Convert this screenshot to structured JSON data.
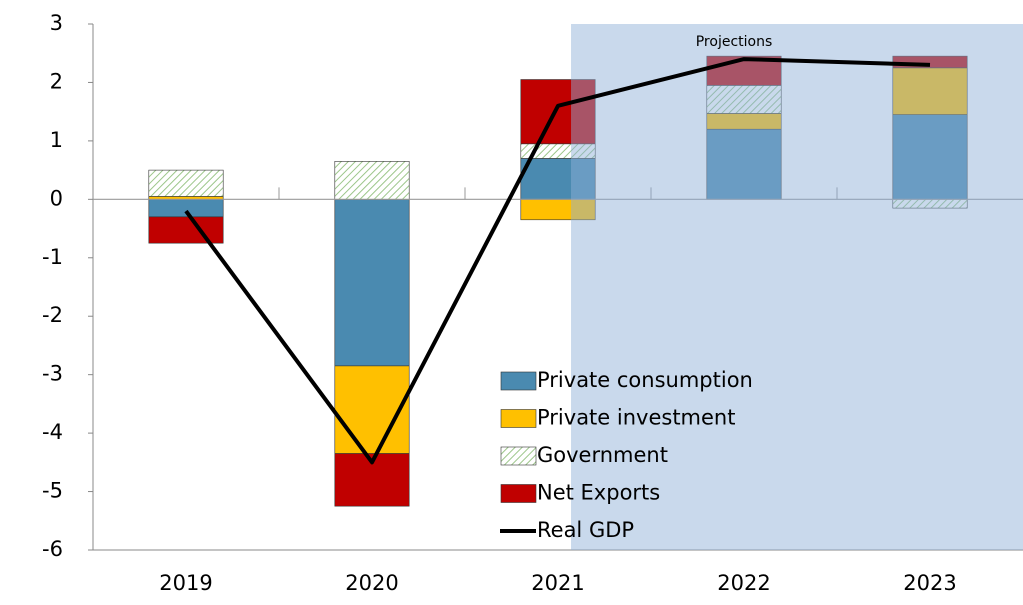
{
  "chart_data": {
    "type": "stacked_bar_line",
    "annotation": "Projections",
    "categories": [
      "2019",
      "2020",
      "2021",
      "2022",
      "2023"
    ],
    "series": [
      {
        "name": "Private consumption",
        "color": "#4a8ab0",
        "values": [
          -0.3,
          -2.85,
          0.7,
          1.2,
          1.45
        ]
      },
      {
        "name": "Private investment",
        "color": "#ffc000",
        "values": [
          0.05,
          -1.5,
          -0.35,
          0.27,
          0.8
        ]
      },
      {
        "name": "Government",
        "color": "#9cc68a",
        "pattern": "hatch",
        "values": [
          0.45,
          0.65,
          0.25,
          0.48,
          -0.15
        ]
      },
      {
        "name": "Net Exports",
        "color": "#c00000",
        "values": [
          -0.45,
          -0.9,
          1.1,
          0.5,
          0.2
        ]
      },
      {
        "name": "Real GDP",
        "color": "#000000",
        "kind": "line",
        "values": [
          -0.2,
          -4.5,
          1.6,
          2.4,
          2.3
        ]
      }
    ],
    "ylim": [
      -6,
      3
    ],
    "yticks": [
      -6,
      -5,
      -4,
      -3,
      -2,
      -1,
      0,
      1,
      2,
      3
    ],
    "projection_start": "2022"
  }
}
